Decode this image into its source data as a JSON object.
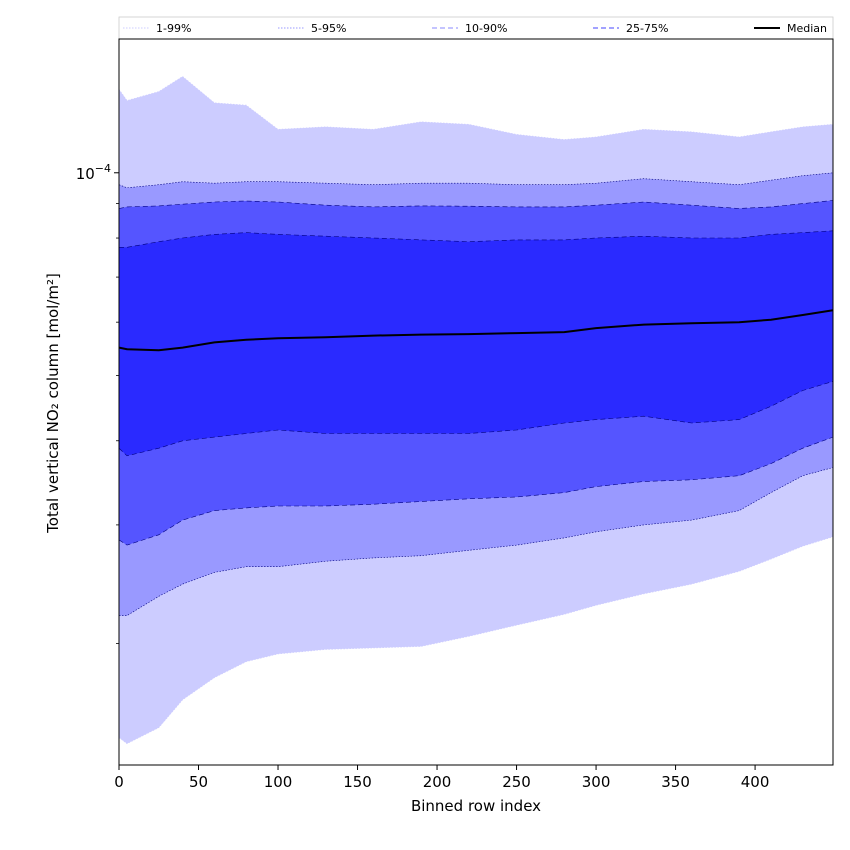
{
  "chart_data": {
    "type": "area",
    "title": "",
    "xlabel": "Binned row index",
    "ylabel": "Total vertical NO₂ column [mol/m²]",
    "y_scale": "log",
    "xlim": [
      0,
      449
    ],
    "ylim": [
      1.32e-05,
      0.000158
    ],
    "x_ticks": [
      0,
      50,
      100,
      150,
      200,
      250,
      300,
      350,
      400
    ],
    "y_ticks": [
      {
        "value": 0.0001,
        "label": "10−4"
      }
    ],
    "grid": false,
    "legend_position": "top",
    "x": [
      0,
      5,
      25,
      40,
      60,
      80,
      100,
      130,
      160,
      190,
      220,
      250,
      280,
      300,
      330,
      360,
      390,
      410,
      430,
      449
    ],
    "bands": [
      {
        "name": "1-99%",
        "color": "#ccccff",
        "line_style": "dotted",
        "lower": [
          1.45e-05,
          1.42e-05,
          1.5e-05,
          1.65e-05,
          1.78e-05,
          1.88e-05,
          1.93e-05,
          1.96e-05,
          1.97e-05,
          1.98e-05,
          2.05e-05,
          2.13e-05,
          2.21e-05,
          2.28e-05,
          2.37e-05,
          2.45e-05,
          2.56e-05,
          2.67e-05,
          2.79e-05,
          2.88e-05
        ],
        "upper": [
          0.000133,
          0.000128,
          0.000132,
          0.000139,
          0.000127,
          0.000126,
          0.000116,
          0.000117,
          0.000116,
          0.000119,
          0.000118,
          0.000114,
          0.000112,
          0.000113,
          0.000116,
          0.000115,
          0.000113,
          0.000115,
          0.000117,
          0.000118
        ]
      },
      {
        "name": "5-95%",
        "color": "#9999ff",
        "line_style": "dotted",
        "lower": [
          2.2e-05,
          2.2e-05,
          2.35e-05,
          2.45e-05,
          2.55e-05,
          2.6e-05,
          2.6e-05,
          2.65e-05,
          2.68e-05,
          2.7e-05,
          2.75e-05,
          2.8e-05,
          2.87e-05,
          2.93e-05,
          3e-05,
          3.05e-05,
          3.15e-05,
          3.35e-05,
          3.55e-05,
          3.65e-05
        ],
        "upper": [
          9.6e-05,
          9.5e-05,
          9.6e-05,
          9.7e-05,
          9.65e-05,
          9.7e-05,
          9.7e-05,
          9.65e-05,
          9.6e-05,
          9.65e-05,
          9.65e-05,
          9.6e-05,
          9.6e-05,
          9.65e-05,
          9.8e-05,
          9.7e-05,
          9.6e-05,
          9.75e-05,
          9.9e-05,
          0.0001
        ]
      },
      {
        "name": "10-90%",
        "color": "#5555ff",
        "line_style": "dashed",
        "lower": [
          2.85e-05,
          2.8e-05,
          2.9e-05,
          3.05e-05,
          3.15e-05,
          3.18e-05,
          3.2e-05,
          3.2e-05,
          3.22e-05,
          3.25e-05,
          3.28e-05,
          3.3e-05,
          3.35e-05,
          3.42e-05,
          3.48e-05,
          3.5e-05,
          3.55e-05,
          3.7e-05,
          3.9e-05,
          4.05e-05
        ],
        "upper": [
          8.85e-05,
          8.9e-05,
          8.93e-05,
          8.98e-05,
          9.05e-05,
          9.08e-05,
          9.05e-05,
          8.95e-05,
          8.9e-05,
          8.93e-05,
          8.92e-05,
          8.9e-05,
          8.9e-05,
          8.95e-05,
          9.05e-05,
          8.95e-05,
          8.85e-05,
          8.9e-05,
          9e-05,
          9.1e-05
        ]
      },
      {
        "name": "25-75%",
        "color": "#2a2aff",
        "line_style": "dashed",
        "lower": [
          3.9e-05,
          3.8e-05,
          3.9e-05,
          4e-05,
          4.05e-05,
          4.1e-05,
          4.15e-05,
          4.1e-05,
          4.1e-05,
          4.1e-05,
          4.1e-05,
          4.15e-05,
          4.25e-05,
          4.3e-05,
          4.35e-05,
          4.25e-05,
          4.3e-05,
          4.5e-05,
          4.75e-05,
          4.9e-05
        ],
        "upper": [
          7.75e-05,
          7.75e-05,
          7.9e-05,
          8e-05,
          8.1e-05,
          8.15e-05,
          8.1e-05,
          8.05e-05,
          8e-05,
          7.95e-05,
          7.9e-05,
          7.95e-05,
          7.95e-05,
          8e-05,
          8.05e-05,
          8e-05,
          8e-05,
          8.1e-05,
          8.15e-05,
          8.2e-05
        ]
      }
    ],
    "series": [
      {
        "name": "Median",
        "color": "#000000",
        "values": [
          5.5e-05,
          5.47e-05,
          5.45e-05,
          5.5e-05,
          5.6e-05,
          5.65e-05,
          5.68e-05,
          5.7e-05,
          5.73e-05,
          5.75e-05,
          5.76e-05,
          5.78e-05,
          5.8e-05,
          5.88e-05,
          5.95e-05,
          5.98e-05,
          6e-05,
          6.05e-05,
          6.15e-05,
          6.25e-05
        ]
      }
    ]
  }
}
